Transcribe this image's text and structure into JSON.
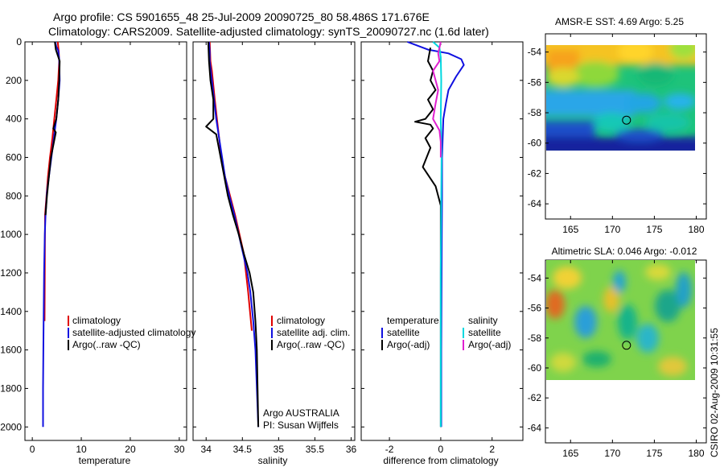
{
  "header": {
    "title_line1": "Argo profile: CS 5901655_48 25-Jul-2009 20090725_80 58.486S 171.676E",
    "title_line2": "Climatology: CARS2009. Satellite-adjusted climatology: synTS_20090727.nc (1.6d later)"
  },
  "footer": {
    "stamp": "CSIRO 02-Aug-2009 10:31:55"
  },
  "colors": {
    "climatology": "#e00000",
    "satellite": "#1010e0",
    "argo": "#000000",
    "sat_salinity": "#00d8e0",
    "argo_adj_salinity": "#e020d0"
  },
  "chart_data": [
    {
      "type": "line",
      "name": "temperature",
      "xlabel": "temperature",
      "ylabel": "",
      "xlim": [
        -1.5,
        31.5
      ],
      "ylim": [
        2070,
        0
      ],
      "xticks": [
        "0",
        "10",
        "20",
        "30"
      ],
      "yticks": [
        "0",
        "200",
        "400",
        "600",
        "800",
        "1000",
        "1200",
        "1400",
        "1600",
        "1800",
        "2000"
      ],
      "legend": [
        "climatology",
        "satellite-adjusted climatology",
        "Argo(..raw -QC)"
      ],
      "series": [
        {
          "name": "climatology",
          "x": [
            5.2,
            5.4,
            5.5,
            5.3,
            4.9,
            4.5,
            4.1,
            3.6,
            3.2,
            2.9,
            2.6,
            2.5
          ],
          "y": [
            0,
            50,
            100,
            200,
            300,
            400,
            500,
            600,
            700,
            800,
            900,
            1450
          ]
        },
        {
          "name": "satellite-adjusted climatology",
          "x": [
            4.7,
            4.9,
            5.3,
            5.5,
            5.6,
            5.3,
            4.9,
            4.4,
            3.9,
            3.4,
            3.0,
            2.7,
            2.55,
            2.4,
            2.3,
            2.2,
            2.2
          ],
          "y": [
            0,
            25,
            45,
            90,
            200,
            300,
            400,
            500,
            600,
            700,
            780,
            900,
            1000,
            1200,
            1500,
            1800,
            2000
          ]
        },
        {
          "name": "Argo(..raw -QC)",
          "x": [
            4.6,
            4.8,
            5.6,
            5.5,
            5.3,
            4.9,
            4.3,
            4.8,
            3.8,
            3.4,
            3.0,
            2.7
          ],
          "y": [
            0,
            40,
            100,
            200,
            300,
            400,
            450,
            470,
            600,
            700,
            800,
            900
          ]
        }
      ]
    },
    {
      "type": "line",
      "name": "salinity",
      "xlabel": "salinity",
      "xlim": [
        33.82,
        36.05
      ],
      "ylim": [
        2070,
        0
      ],
      "xticks": [
        "34",
        "34.5",
        "35",
        "35.5",
        "36"
      ],
      "legend": [
        "climatology",
        "satellite adj. clim.",
        "Argo(..raw -QC)"
      ],
      "annotation": [
        "Argo AUSTRALIA",
        "PI: Susan Wijffels"
      ],
      "series": [
        {
          "name": "climatology",
          "x": [
            34.05,
            34.06,
            34.08,
            34.12,
            34.15,
            34.18,
            34.21,
            34.26,
            34.33,
            34.4,
            34.46,
            34.52,
            34.58,
            34.63
          ],
          "y": [
            0,
            100,
            150,
            300,
            400,
            500,
            600,
            700,
            800,
            900,
            1000,
            1100,
            1300,
            1500
          ]
        },
        {
          "name": "satellite adj. clim.",
          "x": [
            34.04,
            34.05,
            34.05,
            34.08,
            34.11,
            34.14,
            34.18,
            34.22,
            34.26,
            34.32,
            34.39,
            34.45,
            34.51,
            34.57,
            34.61,
            34.65,
            34.68,
            34.7,
            34.72
          ],
          "y": [
            0,
            50,
            100,
            200,
            300,
            400,
            500,
            600,
            700,
            800,
            900,
            1000,
            1100,
            1200,
            1300,
            1450,
            1600,
            1800,
            2000
          ]
        },
        {
          "name": "Argo(..raw -QC)",
          "x": [
            34.03,
            34.04,
            34.06,
            34.1,
            34.1,
            34.0,
            34.14,
            34.2,
            34.25,
            34.3,
            34.37,
            34.45,
            34.52,
            34.6,
            34.65,
            34.68,
            34.7,
            34.71,
            34.72
          ],
          "y": [
            0,
            100,
            200,
            300,
            400,
            440,
            480,
            600,
            700,
            800,
            900,
            1000,
            1100,
            1200,
            1300,
            1450,
            1600,
            1800,
            2000
          ]
        }
      ]
    },
    {
      "type": "line",
      "name": "difference",
      "xlabel": "difference from climatology",
      "xlim": [
        -3.1,
        3.2
      ],
      "ylim": [
        2070,
        0
      ],
      "xticks": [
        "-2",
        "0",
        "2"
      ],
      "legend_left": [
        "temperature",
        "satellite",
        "Argo(-adj)"
      ],
      "legend_right": [
        "salinity",
        "satellite",
        "Argo(-adj)"
      ],
      "series": [
        {
          "name": "temperature satellite",
          "x": [
            -1.3,
            -0.5,
            0.3,
            0.8,
            0.9,
            0.6,
            0.3,
            0.2,
            0.1,
            0.05,
            0.05,
            0.03,
            0.02,
            0.02
          ],
          "y": [
            0,
            40,
            60,
            90,
            120,
            180,
            250,
            320,
            400,
            600,
            800,
            1200,
            1600,
            2000
          ]
        },
        {
          "name": "temperature Argo(-adj)",
          "x": [
            -0.4,
            -0.5,
            -0.3,
            -0.4,
            -0.2,
            -0.5,
            -0.3,
            -0.6,
            -1.0,
            -0.4,
            -0.3,
            -0.6,
            -0.4,
            -0.7,
            -0.2,
            0.0,
            0.0,
            0.0,
            0.0,
            0.0
          ],
          "y": [
            30,
            100,
            150,
            200,
            250,
            300,
            350,
            400,
            415,
            430,
            450,
            500,
            550,
            650,
            750,
            850,
            900,
            1200,
            1500,
            2000
          ]
        },
        {
          "name": "salinity satellite",
          "x": [
            -0.3,
            -0.05,
            0.0,
            0.02,
            0.0,
            0.03,
            0.02,
            0.0,
            0.0,
            0.0
          ],
          "y": [
            0,
            30,
            80,
            200,
            400,
            600,
            800,
            1200,
            1600,
            2000
          ]
        },
        {
          "name": "salinity Argo(-adj)",
          "x": [
            0.0,
            -0.1,
            -0.05,
            -0.3,
            -0.1,
            -0.2,
            -0.3,
            -0.05,
            0.0,
            0.0
          ],
          "y": [
            0,
            60,
            100,
            150,
            250,
            320,
            400,
            460,
            520,
            600
          ]
        }
      ]
    },
    {
      "type": "heatmap",
      "name": "amsr-e-sst",
      "title": "AMSR-E SST: 4.69 Argo: 5.25",
      "xlim": [
        162,
        181.2
      ],
      "ylim": [
        -65,
        -52.8
      ],
      "xticks": [
        "165",
        "170",
        "175",
        "180"
      ],
      "yticks": [
        "-54",
        "-56",
        "-58",
        "-60",
        "-62",
        "-64"
      ],
      "data_extent": {
        "lon": [
          162,
          180
        ],
        "lat": [
          -60,
          -53
        ]
      },
      "marker": {
        "lon": 171.676,
        "lat": -58.486
      }
    },
    {
      "type": "heatmap",
      "name": "altimetric-sla",
      "title": "Altimetric SLA: 0.046 Argo: -0.012",
      "xlim": [
        162,
        181.2
      ],
      "ylim": [
        -65,
        -52.8
      ],
      "xticks": [
        "165",
        "170",
        "175",
        "180"
      ],
      "yticks": [
        "-54",
        "-56",
        "-58",
        "-60",
        "-62",
        "-64"
      ],
      "data_extent": {
        "lon": [
          162,
          180
        ],
        "lat": [
          -60,
          -53
        ]
      },
      "marker": {
        "lon": 171.676,
        "lat": -58.486
      }
    }
  ]
}
